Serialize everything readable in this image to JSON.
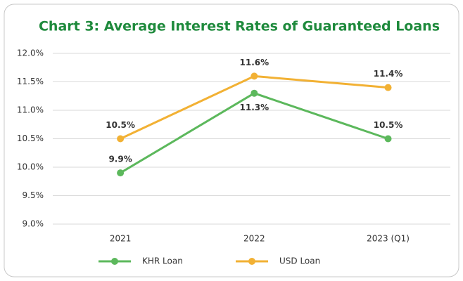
{
  "chart_data": {
    "type": "line",
    "title": "Chart 3: Average Interest Rates of Guaranteed Loans",
    "categories": [
      "2021",
      "2022",
      "2023 (Q1)"
    ],
    "series": [
      {
        "name": "KHR Loan",
        "color": "#5cb85c",
        "values": [
          9.9,
          11.3,
          10.5
        ],
        "value_labels": [
          "9.9%",
          "11.3%",
          "10.5%"
        ]
      },
      {
        "name": "USD Loan",
        "color": "#f2b134",
        "values": [
          10.5,
          11.6,
          11.4
        ],
        "value_labels": [
          "10.5%",
          "11.6%",
          "11.4%"
        ]
      }
    ],
    "ylim": [
      9.0,
      12.0
    ],
    "yticks": [
      {
        "value": 9.0,
        "label": "9.0%"
      },
      {
        "value": 9.5,
        "label": "9.5%"
      },
      {
        "value": 10.0,
        "label": "10.0%"
      },
      {
        "value": 10.5,
        "label": "10.5%"
      },
      {
        "value": 11.0,
        "label": "11.0%"
      },
      {
        "value": 11.5,
        "label": "11.5%"
      },
      {
        "value": 12.0,
        "label": "12.0%"
      }
    ],
    "grid": true,
    "legend": "bottom"
  }
}
